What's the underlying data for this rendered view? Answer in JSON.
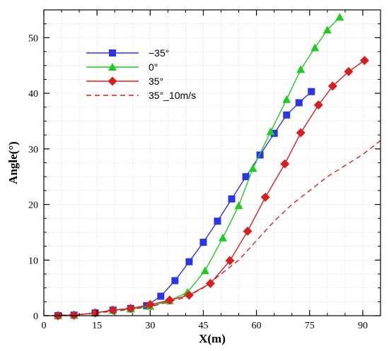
{
  "chart_data": {
    "type": "line",
    "xlabel": "X(m)",
    "ylabel": "Angle(°)",
    "xlim": [
      0,
      95
    ],
    "ylim": [
      0,
      55
    ],
    "xticks": [
      0,
      15,
      30,
      45,
      60,
      75,
      90
    ],
    "yticks": [
      0,
      10,
      20,
      30,
      40,
      50
    ],
    "grid": true,
    "legend_position": "top-left",
    "series": [
      {
        "name": "−35°",
        "color": "#2b35e6",
        "marker": "square",
        "line": "solid",
        "x": [
          4,
          8.5,
          14.5,
          19.5,
          24.5,
          29,
          33,
          37,
          41,
          45,
          49,
          53,
          57,
          61,
          65,
          68.5,
          72,
          75.5
        ],
        "y": [
          0,
          0.1,
          0.5,
          1,
          1.3,
          1.8,
          3.5,
          6.3,
          9.7,
          13.2,
          17,
          21,
          25,
          28.9,
          32.8,
          36.1,
          38.3,
          40.3
        ]
      },
      {
        "name": "0°",
        "color": "#1fcc1f",
        "marker": "triangle",
        "line": "solid",
        "x": [
          4,
          8.5,
          14.5,
          19.5,
          24.5,
          30,
          35.5,
          40.5,
          45.5,
          50.5,
          55,
          59,
          64,
          68.5,
          72.5,
          76.5,
          80,
          83.5
        ],
        "y": [
          0,
          0.1,
          0.5,
          1,
          1.2,
          1.7,
          2.7,
          4.2,
          8.1,
          14,
          19.8,
          26.5,
          33.1,
          38.9,
          44.3,
          48.2,
          51.4,
          53.7
        ]
      },
      {
        "name": "35°",
        "color": "#d81e1e",
        "marker": "diamond",
        "line": "solid",
        "x": [
          4,
          8.5,
          14.5,
          19.5,
          24.5,
          30,
          35.5,
          41,
          47,
          52.5,
          57.5,
          62.5,
          68,
          72.5,
          77.5,
          81.5,
          86,
          90.5
        ],
        "y": [
          0,
          0.1,
          0.5,
          1,
          1.3,
          2,
          2.8,
          3.7,
          5.8,
          9.9,
          15.2,
          21.3,
          27.3,
          32.9,
          37.9,
          41.3,
          43.9,
          45.9
        ]
      },
      {
        "name": "35°_10m/s",
        "color": "#d81e1e",
        "marker": "none",
        "line": "dashed",
        "x": [
          0,
          10,
          20,
          30,
          40,
          45,
          50,
          55,
          60,
          65,
          70,
          75,
          80,
          85,
          90,
          95
        ],
        "y": [
          0,
          0.2,
          0.8,
          1.6,
          3.3,
          5,
          7.5,
          10,
          13.5,
          17,
          20,
          22.5,
          25,
          27,
          29,
          31.5
        ]
      }
    ]
  }
}
